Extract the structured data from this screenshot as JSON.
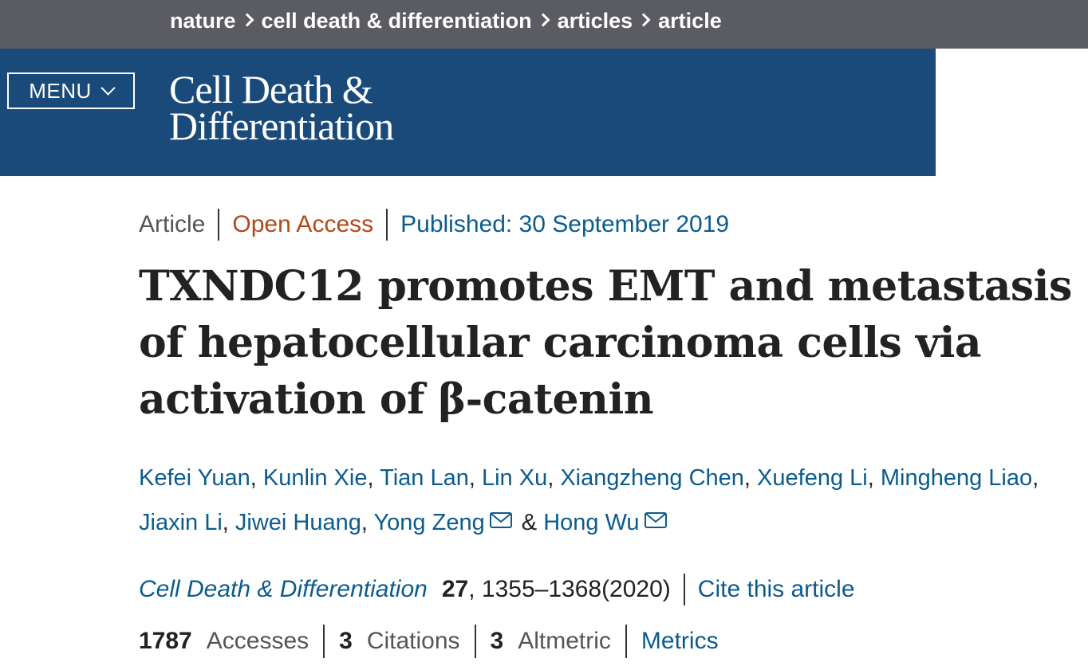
{
  "breadcrumb": {
    "items": [
      "nature",
      "cell death & differentiation",
      "articles",
      "article"
    ]
  },
  "header": {
    "menu_label": "MENU",
    "journal_logo_line1": "Cell Death &",
    "journal_logo_line2": "Differentiation"
  },
  "article": {
    "type": "Article",
    "access": "Open Access",
    "published": "Published: 30 September 2019",
    "title": "TXNDC12 promotes EMT and metastasis of hepatocellular carcinoma cells via activation of β-catenin",
    "authors": [
      {
        "name": "Kefei Yuan",
        "sep": ", "
      },
      {
        "name": "Kunlin Xie",
        "sep": ", "
      },
      {
        "name": "Tian Lan",
        "sep": ", "
      },
      {
        "name": "Lin Xu",
        "sep": ", "
      },
      {
        "name": "Xiangzheng Chen",
        "sep": ", "
      },
      {
        "name": "Xuefeng Li",
        "sep": ", "
      },
      {
        "name": "Mingheng Liao",
        "sep": ", "
      },
      {
        "name": "Jiaxin Li",
        "sep": ", "
      },
      {
        "name": "Jiwei Huang",
        "sep": ", "
      },
      {
        "name": "Yong Zeng",
        "sep": " & ",
        "mail": true
      },
      {
        "name": "Hong Wu",
        "sep": "",
        "mail": true
      }
    ],
    "journal_name": "Cell Death & Differentiation",
    "volume": "27",
    "pages": ", 1355–1368(2020)",
    "cite_label": "Cite this article"
  },
  "metrics": {
    "accesses_count": "1787",
    "accesses_label": "Accesses",
    "citations_count": "3",
    "citations_label": "Citations",
    "altmetric_count": "3",
    "altmetric_label": "Altmetric",
    "metrics_link": "Metrics"
  },
  "colors": {
    "breadcrumb_bg": "#5b5b62",
    "banner_bg": "#1a4a7a",
    "link": "#0b5c8c",
    "open_access": "#b5471a"
  }
}
